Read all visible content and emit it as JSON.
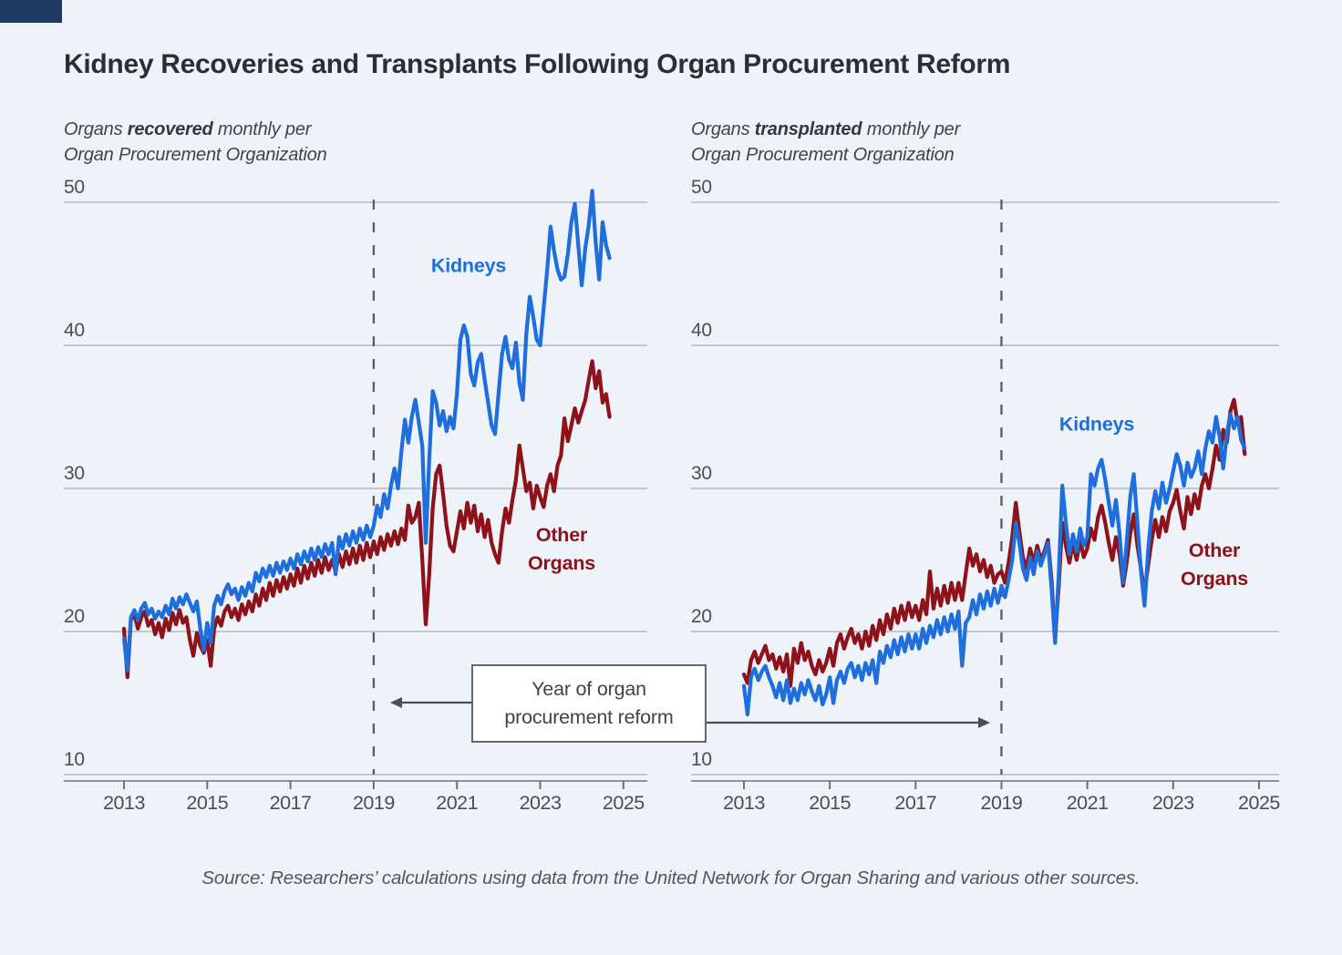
{
  "page": {
    "background_color": "#eef2f9",
    "corner_mark_color": "#203a66",
    "kidneys_color": "#1e6edc",
    "other_organs_color": "#8e1219"
  },
  "title": "Kidney Recoveries and Transplants Following Organ Procurement Reform",
  "annotation": {
    "line1": "Year of organ",
    "line2": "procurement reform"
  },
  "source_note": "Source: Researchers’ calculations using data from the United Network for Organ Sharing and various other sources.",
  "chart_data": [
    {
      "id": "recovered",
      "type": "line",
      "subtitle": {
        "pre": "Organs ",
        "emph": "recovered",
        "post": " monthly per",
        "line2": "Organ Procurement Organization"
      },
      "x_start_year": 2013,
      "x_step_months": 1,
      "x_tick_labels": [
        "2013",
        "2015",
        "2017",
        "2019",
        "2021",
        "2023",
        "2025"
      ],
      "x_tick_years": [
        2013,
        2015,
        2017,
        2019,
        2021,
        2023,
        2025
      ],
      "y_ticks": [
        50,
        40,
        30,
        20,
        10
      ],
      "ylim": [
        10,
        50
      ],
      "xlim": [
        2012.55,
        2025.45
      ],
      "grid": true,
      "reform_year": 2019,
      "labels": {
        "kidneys": "Kidneys",
        "other_line1": "Other",
        "other_line2": "Organs"
      },
      "series": [
        {
          "name": "Kidneys",
          "color": "#1e6edc",
          "values": [
            19.5,
            17.3,
            21.0,
            21.5,
            20.8,
            21.6,
            22.0,
            21.2,
            21.6,
            20.9,
            21.4,
            21.0,
            21.8,
            21.2,
            22.3,
            21.6,
            22.4,
            21.9,
            22.6,
            22.0,
            21.4,
            22.1,
            20.2,
            18.7,
            20.6,
            19.2,
            21.8,
            22.5,
            21.9,
            22.8,
            23.3,
            22.6,
            23.0,
            22.2,
            23.1,
            22.5,
            23.4,
            22.8,
            24.1,
            23.5,
            24.4,
            23.8,
            24.6,
            23.9,
            24.8,
            24.1,
            24.9,
            24.3,
            25.1,
            24.4,
            25.4,
            24.7,
            25.6,
            24.9,
            25.8,
            25.0,
            25.9,
            25.2,
            26.1,
            25.4,
            26.2,
            24.0,
            26.6,
            25.8,
            26.8,
            26.0,
            27.0,
            26.2,
            27.2,
            26.4,
            27.4,
            26.6,
            27.4,
            28.8,
            28.0,
            29.6,
            28.6,
            30.2,
            31.4,
            30.0,
            32.6,
            34.8,
            33.2,
            35.0,
            36.2,
            34.6,
            33.0,
            26.2,
            32.0,
            36.8,
            36.0,
            34.4,
            35.4,
            34.0,
            35.0,
            34.2,
            36.6,
            40.4,
            41.4,
            40.6,
            38.0,
            37.2,
            38.8,
            39.4,
            37.6,
            36.0,
            34.4,
            33.8,
            36.6,
            39.4,
            40.6,
            39.0,
            38.4,
            40.2,
            37.4,
            36.2,
            40.8,
            43.4,
            42.0,
            40.4,
            40.0,
            42.6,
            45.2,
            48.3,
            46.6,
            45.3,
            44.6,
            44.8,
            46.4,
            48.6,
            49.9,
            47.0,
            44.2,
            46.8,
            48.4,
            50.8,
            47.2,
            44.6,
            48.6,
            47.0,
            46.1
          ]
        },
        {
          "name": "Other Organs",
          "color": "#8e1219",
          "values": [
            20.2,
            16.8,
            20.8,
            21.2,
            20.2,
            21.0,
            21.4,
            20.4,
            20.8,
            19.8,
            20.6,
            19.6,
            20.9,
            20.1,
            21.3,
            20.5,
            21.5,
            20.6,
            21.0,
            19.4,
            18.3,
            19.9,
            19.0,
            18.5,
            19.4,
            17.6,
            20.2,
            21.0,
            20.4,
            21.4,
            21.8,
            21.0,
            21.6,
            20.8,
            21.9,
            21.2,
            22.1,
            21.4,
            22.6,
            21.8,
            23.0,
            22.2,
            23.4,
            22.5,
            23.6,
            22.8,
            23.8,
            23.0,
            24.0,
            23.2,
            24.4,
            23.4,
            24.6,
            23.7,
            24.8,
            23.9,
            25.0,
            24.1,
            25.2,
            24.3,
            25.0,
            24.2,
            25.4,
            24.5,
            25.6,
            24.7,
            25.8,
            24.8,
            26.0,
            25.0,
            26.2,
            25.2,
            26.3,
            25.4,
            26.6,
            25.7,
            26.8,
            26.0,
            27.0,
            26.1,
            27.2,
            26.4,
            28.8,
            27.6,
            28.0,
            29.0,
            25.0,
            20.5,
            24.0,
            28.6,
            31.0,
            31.6,
            29.6,
            27.4,
            26.0,
            25.6,
            27.0,
            28.4,
            27.2,
            29.0,
            27.6,
            28.8,
            27.0,
            28.2,
            26.6,
            27.8,
            26.2,
            25.4,
            24.8,
            27.0,
            28.6,
            27.6,
            29.2,
            30.6,
            33.0,
            31.4,
            29.8,
            30.4,
            28.6,
            30.2,
            29.4,
            28.7,
            30.2,
            31.0,
            29.8,
            31.6,
            32.3,
            34.9,
            33.3,
            34.4,
            35.6,
            34.6,
            35.4,
            36.2,
            37.6,
            38.9,
            37.0,
            38.2,
            36.0,
            36.6,
            35.0
          ]
        }
      ]
    },
    {
      "id": "transplanted",
      "type": "line",
      "subtitle": {
        "pre": "Organs ",
        "emph": "transplanted",
        "post": " monthly per",
        "line2": "Organ Procurement Organization"
      },
      "x_start_year": 2013,
      "x_step_months": 1,
      "x_tick_labels": [
        "2013",
        "2015",
        "2017",
        "2019",
        "2021",
        "2023",
        "2025"
      ],
      "x_tick_years": [
        2013,
        2015,
        2017,
        2019,
        2021,
        2023,
        2025
      ],
      "y_ticks": [
        50,
        40,
        30,
        20,
        10
      ],
      "ylim": [
        10,
        50
      ],
      "xlim": [
        2012.55,
        2025.45
      ],
      "grid": true,
      "reform_year": 2019,
      "labels": {
        "kidneys": "Kidneys",
        "other_line1": "Other",
        "other_line2": "Organs"
      },
      "series": [
        {
          "name": "Kidneys",
          "color": "#1e6edc",
          "values": [
            16.2,
            14.2,
            16.8,
            17.4,
            16.6,
            17.2,
            17.6,
            16.8,
            16.2,
            15.4,
            16.4,
            15.2,
            16.6,
            15.0,
            16.0,
            15.2,
            16.4,
            15.6,
            16.6,
            15.8,
            15.2,
            16.2,
            14.9,
            15.6,
            16.8,
            15.0,
            16.6,
            17.2,
            16.4,
            17.4,
            17.8,
            16.8,
            17.6,
            16.6,
            17.8,
            17.0,
            18.0,
            16.4,
            18.6,
            17.8,
            19.0,
            18.2,
            19.4,
            18.4,
            19.6,
            18.6,
            19.8,
            18.8,
            19.8,
            18.8,
            20.2,
            19.2,
            20.4,
            19.6,
            20.8,
            19.8,
            21.0,
            20.0,
            21.2,
            20.2,
            21.4,
            17.6,
            20.6,
            21.0,
            22.2,
            21.2,
            22.6,
            21.6,
            22.8,
            21.8,
            23.0,
            22.0,
            23.2,
            22.4,
            23.6,
            25.0,
            27.6,
            26.2,
            24.4,
            23.6,
            25.2,
            24.0,
            25.6,
            24.6,
            25.4,
            26.2,
            23.0,
            19.2,
            24.0,
            30.2,
            27.6,
            25.4,
            26.8,
            25.6,
            27.2,
            26.0,
            26.6,
            31.0,
            30.2,
            31.4,
            32.0,
            30.6,
            29.0,
            27.4,
            29.2,
            26.8,
            23.4,
            26.2,
            29.4,
            31.0,
            27.6,
            24.2,
            21.8,
            25.6,
            28.4,
            29.8,
            28.6,
            30.4,
            29.0,
            30.0,
            31.2,
            32.4,
            31.6,
            30.2,
            31.8,
            30.8,
            31.4,
            32.6,
            31.0,
            32.8,
            34.0,
            33.2,
            35.0,
            33.6,
            31.4,
            33.8,
            35.2,
            34.2,
            35.0,
            33.4,
            32.8
          ]
        },
        {
          "name": "Other Organs",
          "color": "#8e1219",
          "values": [
            17.0,
            16.4,
            18.0,
            18.6,
            17.8,
            18.4,
            19.0,
            18.0,
            18.4,
            17.4,
            18.2,
            17.2,
            18.4,
            16.2,
            18.8,
            17.8,
            19.2,
            18.0,
            18.6,
            17.6,
            17.0,
            18.0,
            17.2,
            17.8,
            18.8,
            17.6,
            19.2,
            19.8,
            18.8,
            19.6,
            20.2,
            19.2,
            19.8,
            18.8,
            20.0,
            19.0,
            20.4,
            19.4,
            20.8,
            19.8,
            21.2,
            20.2,
            21.6,
            20.6,
            21.8,
            20.8,
            22.0,
            21.0,
            21.8,
            20.8,
            22.2,
            21.2,
            24.2,
            21.6,
            23.0,
            21.8,
            23.2,
            22.0,
            23.4,
            22.2,
            23.4,
            22.2,
            24.0,
            25.8,
            24.6,
            25.4,
            24.2,
            25.0,
            23.8,
            24.6,
            23.4,
            24.0,
            24.2,
            23.4,
            24.8,
            26.6,
            29.0,
            27.0,
            25.2,
            24.4,
            25.8,
            24.8,
            26.0,
            25.0,
            25.6,
            26.4,
            23.6,
            19.5,
            23.2,
            27.6,
            26.0,
            24.8,
            26.2,
            25.0,
            26.4,
            25.2,
            25.8,
            27.2,
            26.4,
            28.0,
            28.8,
            27.6,
            26.2,
            25.0,
            26.6,
            25.4,
            23.2,
            24.8,
            26.8,
            28.2,
            26.0,
            24.4,
            22.7,
            24.6,
            26.4,
            27.8,
            26.6,
            28.0,
            27.0,
            28.4,
            29.0,
            29.9,
            28.4,
            27.2,
            29.4,
            28.2,
            29.6,
            28.6,
            30.2,
            31.0,
            30.0,
            31.4,
            33.0,
            32.0,
            34.1,
            33.2,
            35.4,
            36.2,
            34.6,
            35.0,
            32.4
          ]
        }
      ]
    }
  ]
}
